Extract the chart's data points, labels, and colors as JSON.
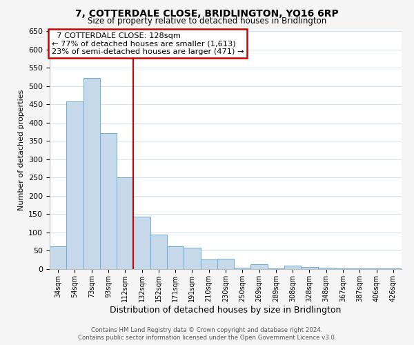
{
  "title": "7, COTTERDALE CLOSE, BRIDLINGTON, YO16 6RP",
  "subtitle": "Size of property relative to detached houses in Bridlington",
  "xlabel": "Distribution of detached houses by size in Bridlington",
  "ylabel": "Number of detached properties",
  "footer_line1": "Contains HM Land Registry data © Crown copyright and database right 2024.",
  "footer_line2": "Contains public sector information licensed under the Open Government Licence v3.0.",
  "bar_labels": [
    "34sqm",
    "54sqm",
    "73sqm",
    "93sqm",
    "112sqm",
    "132sqm",
    "152sqm",
    "171sqm",
    "191sqm",
    "210sqm",
    "230sqm",
    "250sqm",
    "269sqm",
    "289sqm",
    "308sqm",
    "328sqm",
    "348sqm",
    "367sqm",
    "387sqm",
    "406sqm",
    "426sqm"
  ],
  "bar_values": [
    63,
    458,
    521,
    371,
    251,
    143,
    95,
    62,
    58,
    27,
    29,
    4,
    13,
    1,
    10,
    5,
    3,
    2,
    1,
    1,
    1
  ],
  "bar_color": "#c5d9ea",
  "bar_edge_color": "#6aaed6",
  "annotation_box_title": "7 COTTERDALE CLOSE: 128sqm",
  "annotation_line1": "← 77% of detached houses are smaller (1,613)",
  "annotation_line2": "23% of semi-detached houses are larger (471) →",
  "annotation_box_edge_color": "#cc0000",
  "marker_line_color": "#cc0000",
  "ylim": [
    0,
    650
  ],
  "yticks": [
    0,
    50,
    100,
    150,
    200,
    250,
    300,
    350,
    400,
    450,
    500,
    550,
    600,
    650
  ],
  "background_color": "#f5f5f5",
  "plot_bg_color": "#ffffff",
  "grid_color": "#d8e4ed"
}
